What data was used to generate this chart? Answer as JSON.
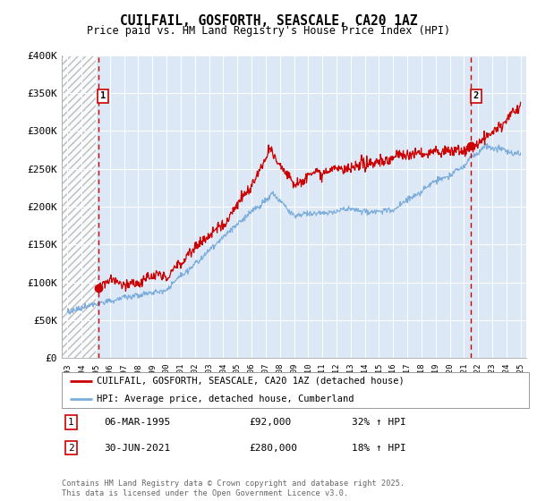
{
  "title": "CUILFAIL, GOSFORTH, SEASCALE, CA20 1AZ",
  "subtitle": "Price paid vs. HM Land Registry's House Price Index (HPI)",
  "ylim": [
    0,
    400000
  ],
  "yticks": [
    0,
    50000,
    100000,
    150000,
    200000,
    250000,
    300000,
    350000,
    400000
  ],
  "ytick_labels": [
    "£0",
    "£50K",
    "£100K",
    "£150K",
    "£200K",
    "£250K",
    "£300K",
    "£350K",
    "£400K"
  ],
  "xlim_start": 1992.6,
  "xlim_end": 2025.4,
  "marker1_x": 1995.17,
  "marker1_y": 92000,
  "marker2_x": 2021.5,
  "marker2_y": 280000,
  "marker1_label": "06-MAR-1995",
  "marker1_price": "£92,000",
  "marker1_hpi": "32% ↑ HPI",
  "marker2_label": "30-JUN-2021",
  "marker2_price": "£280,000",
  "marker2_hpi": "18% ↑ HPI",
  "red_line_color": "#cc0000",
  "blue_line_color": "#7aaddb",
  "chart_bg": "#dce8f5",
  "grid_color": "#ffffff",
  "legend_line1": "CUILFAIL, GOSFORTH, SEASCALE, CA20 1AZ (detached house)",
  "legend_line2": "HPI: Average price, detached house, Cumberland",
  "copyright": "Contains HM Land Registry data © Crown copyright and database right 2025.\nThis data is licensed under the Open Government Licence v3.0.",
  "hatch_end": 1995.0
}
